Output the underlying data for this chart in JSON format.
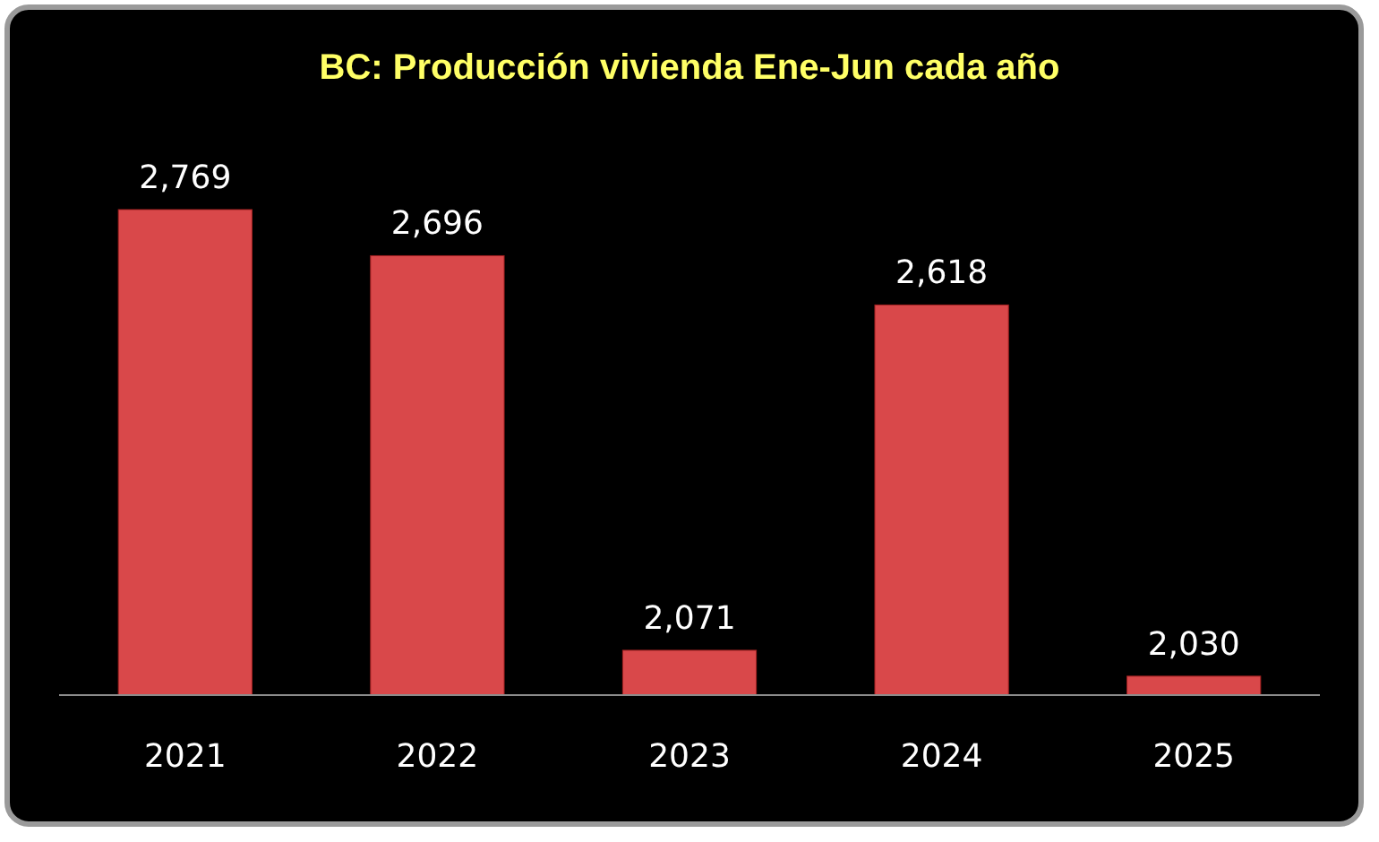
{
  "chart_data": {
    "type": "bar",
    "title": "BC: Producción vivienda Ene-Jun cada año",
    "categories": [
      "2021",
      "2022",
      "2023",
      "2024",
      "2025"
    ],
    "values": [
      2769,
      2696,
      2071,
      2618,
      2030
    ],
    "value_labels": [
      "2,769",
      "2,696",
      "2,071",
      "2,618",
      "2,030"
    ],
    "color": "#d9484a",
    "ylim": [
      2000,
      2769
    ],
    "tick_labels": "x"
  }
}
